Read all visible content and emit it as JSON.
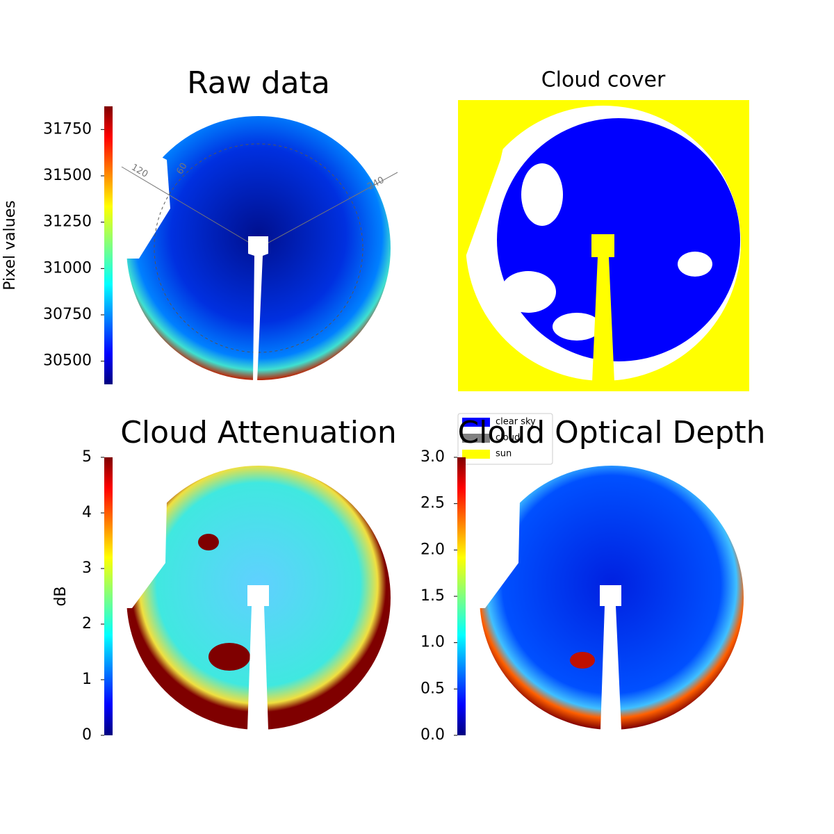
{
  "chart_data": [
    {
      "type": "image",
      "title": "Raw data",
      "ylabel": "Pixel values",
      "colormap": "jet",
      "ylim": [
        30375,
        31875
      ],
      "yticks": [
        30500,
        30750,
        31000,
        31250,
        31500,
        31750
      ],
      "annotations": [
        "120",
        "60",
        "240"
      ]
    },
    {
      "type": "categorical-image",
      "title": "Cloud cover",
      "legend": [
        {
          "name": "clear sky",
          "color": "#0000ff"
        },
        {
          "name": "cloud",
          "color": "#808080"
        },
        {
          "name": "sun",
          "color": "#ffff00"
        }
      ]
    },
    {
      "type": "image",
      "title": "Cloud Attenuation",
      "ylabel": "dB",
      "colormap": "jet",
      "ylim": [
        0,
        5
      ],
      "yticks": [
        0,
        1,
        2,
        3,
        4,
        5
      ]
    },
    {
      "type": "image",
      "title": "Cloud Optical Depth",
      "colormap": "jet",
      "ylim": [
        0,
        3
      ],
      "yticks": [
        {
          "value": 0,
          "label": "0.0"
        },
        0.5,
        {
          "value": 1,
          "label": "1.0"
        },
        1.5,
        {
          "value": 2,
          "label": "2.0"
        },
        2.5,
        {
          "value": 3,
          "label": "3.0"
        }
      ]
    }
  ]
}
